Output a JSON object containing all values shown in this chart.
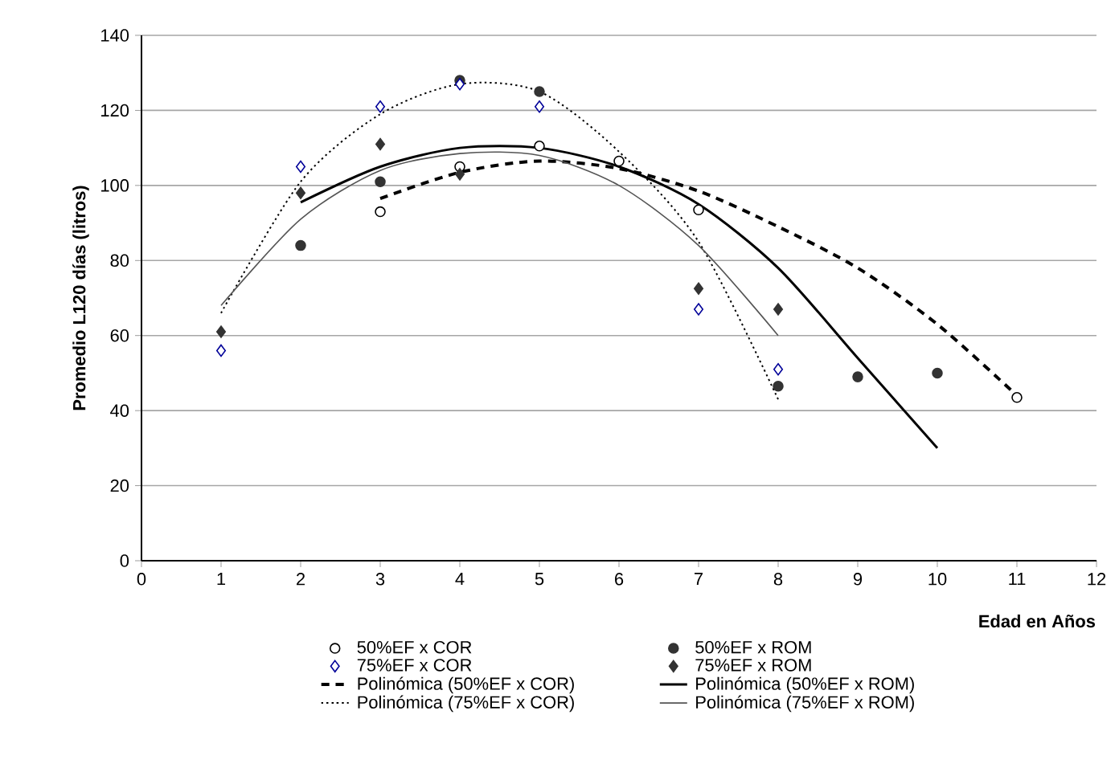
{
  "chart_data": {
    "type": "scatter",
    "xlabel": "Edad en Años",
    "ylabel": "Promedio L120 días (litros)",
    "xlim": [
      0,
      12
    ],
    "xticks": [
      0,
      1,
      2,
      3,
      4,
      5,
      6,
      7,
      8,
      9,
      10,
      11,
      12
    ],
    "ylim": [
      0,
      140
    ],
    "yticks": [
      0,
      20,
      40,
      60,
      80,
      100,
      120,
      140
    ],
    "grid": "y",
    "legend": "bottom",
    "series": [
      {
        "name": "50%EF x COR",
        "marker": "circle",
        "color": "#000000",
        "x": [
          3,
          4,
          5,
          6,
          7,
          11
        ],
        "values": [
          93,
          105,
          110.5,
          106.5,
          93.5,
          43.5
        ]
      },
      {
        "name": "50%EF x ROM",
        "marker": "circle",
        "color": "#333333",
        "x": [
          2,
          3,
          4,
          5,
          8,
          9,
          10
        ],
        "values": [
          84,
          101,
          128,
          125,
          46.5,
          49,
          50
        ]
      },
      {
        "name": "75%EF x COR",
        "marker": "diamond",
        "color": "#000099",
        "x": [
          1,
          2,
          3,
          4,
          5,
          7,
          8
        ],
        "values": [
          56,
          105,
          121,
          127,
          121,
          67,
          51
        ]
      },
      {
        "name": "75%EF x ROM",
        "marker": "diamond",
        "color": "#333333",
        "x": [
          1,
          2,
          3,
          4,
          7,
          8
        ],
        "values": [
          61,
          98,
          111,
          103,
          72.5,
          67
        ]
      },
      {
        "name": "Polinómica (50%EF x COR)",
        "type": "line",
        "line_style": "dashed",
        "color": "#000000",
        "x": [
          3,
          4,
          5,
          6,
          7,
          8,
          9,
          10,
          11
        ],
        "values": [
          96.5,
          103.5,
          106.5,
          104.5,
          98.5,
          89,
          78,
          63,
          44
        ]
      },
      {
        "name": "Polinómica (50%EF x ROM)",
        "type": "line",
        "line_style": "solid",
        "color": "#000000",
        "x": [
          2,
          3,
          4,
          5,
          6,
          7,
          8,
          9,
          10
        ],
        "values": [
          95.5,
          105,
          110,
          110,
          105,
          95,
          78,
          54,
          30
        ]
      },
      {
        "name": "Polinómica (75%EF x COR)",
        "type": "line",
        "line_style": "dotted",
        "color": "#000000",
        "x": [
          1,
          2,
          3,
          4,
          5,
          6,
          7,
          8
        ],
        "values": [
          66,
          101,
          119,
          127,
          125,
          109,
          85,
          43
        ]
      },
      {
        "name": "Polinómica (75%EF x ROM)",
        "type": "line",
        "line_style": "solid",
        "color": "#555555",
        "x": [
          1,
          2,
          3,
          4,
          5,
          6,
          7,
          8
        ],
        "values": [
          68,
          91,
          104,
          108.5,
          108,
          100,
          84,
          60
        ]
      }
    ]
  }
}
